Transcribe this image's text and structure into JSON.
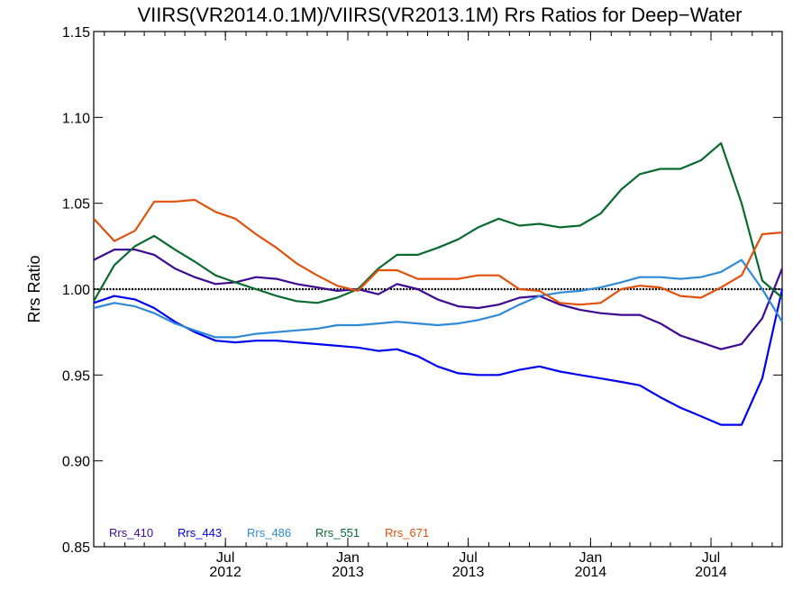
{
  "chart_data": {
    "type": "line",
    "title": "VIIRS(VR2014.0.1M)/VIIRS(VR2013.1M)  Rrs Ratios for Deep−Water",
    "xlabel": "",
    "ylabel": "Rrs Ratio",
    "ylim": [
      0.85,
      1.15
    ],
    "xlim": [
      "2011-12-16",
      "2014-10-16"
    ],
    "grid": false,
    "legend_position": "bottom-left",
    "y_ticks": [
      "0.85",
      "0.90",
      "0.95",
      "1.00",
      "1.05",
      "1.10",
      "1.15"
    ],
    "x_ticks": [
      {
        "date": "2012-07-01",
        "month": "Jul",
        "year": "2012"
      },
      {
        "date": "2013-01-01",
        "month": "Jan",
        "year": "2013"
      },
      {
        "date": "2013-07-01",
        "month": "Jul",
        "year": "2013"
      },
      {
        "date": "2014-01-01",
        "month": "Jan",
        "year": "2014"
      },
      {
        "date": "2014-07-01",
        "month": "Jul",
        "year": "2014"
      }
    ],
    "reference_line": 1.0,
    "x": [
      "2011-12-16",
      "2012-01-16",
      "2012-02-16",
      "2012-03-16",
      "2012-04-16",
      "2012-05-16",
      "2012-06-16",
      "2012-07-16",
      "2012-08-16",
      "2012-09-16",
      "2012-10-16",
      "2012-11-16",
      "2012-12-16",
      "2013-01-16",
      "2013-02-16",
      "2013-03-16",
      "2013-04-16",
      "2013-05-16",
      "2013-06-16",
      "2013-07-16",
      "2013-08-16",
      "2013-09-16",
      "2013-10-16",
      "2013-11-16",
      "2013-12-16",
      "2014-01-16",
      "2014-02-16",
      "2014-03-16",
      "2014-04-16",
      "2014-05-16",
      "2014-06-16",
      "2014-07-16",
      "2014-08-16",
      "2014-09-16",
      "2014-10-16"
    ],
    "series": [
      {
        "name": "Rrs_410",
        "color": "#3d0a91",
        "values": [
          1.017,
          1.023,
          1.023,
          1.02,
          1.012,
          1.007,
          1.003,
          1.004,
          1.007,
          1.006,
          1.003,
          1.001,
          0.999,
          1.0,
          0.997,
          1.003,
          1.0,
          0.994,
          0.99,
          0.989,
          0.991,
          0.995,
          0.996,
          0.991,
          0.988,
          0.986,
          0.985,
          0.985,
          0.98,
          0.973,
          0.969,
          0.965,
          0.968,
          0.983,
          1.012
        ]
      },
      {
        "name": "Rrs_443",
        "color": "#0000f0",
        "values": [
          0.992,
          0.996,
          0.994,
          0.989,
          0.981,
          0.975,
          0.97,
          0.969,
          0.97,
          0.97,
          0.969,
          0.968,
          0.967,
          0.966,
          0.964,
          0.965,
          0.961,
          0.955,
          0.951,
          0.95,
          0.95,
          0.953,
          0.955,
          0.952,
          0.95,
          0.948,
          0.946,
          0.944,
          0.937,
          0.931,
          0.926,
          0.921,
          0.921,
          0.948,
          1.0
        ]
      },
      {
        "name": "Rrs_486",
        "color": "#2e8ad6",
        "values": [
          0.989,
          0.992,
          0.99,
          0.986,
          0.98,
          0.976,
          0.972,
          0.972,
          0.974,
          0.975,
          0.976,
          0.977,
          0.979,
          0.979,
          0.98,
          0.981,
          0.98,
          0.979,
          0.98,
          0.982,
          0.985,
          0.991,
          0.996,
          0.998,
          0.999,
          1.001,
          1.004,
          1.007,
          1.007,
          1.006,
          1.007,
          1.01,
          1.017,
          1.0,
          0.981
        ]
      },
      {
        "name": "Rrs_551",
        "color": "#0a6b31",
        "values": [
          0.993,
          1.014,
          1.025,
          1.031,
          1.023,
          1.016,
          1.008,
          1.004,
          1.0,
          0.996,
          0.993,
          0.992,
          0.995,
          1.0,
          1.012,
          1.02,
          1.02,
          1.024,
          1.029,
          1.036,
          1.041,
          1.037,
          1.038,
          1.036,
          1.037,
          1.044,
          1.058,
          1.067,
          1.07,
          1.07,
          1.075,
          1.085,
          1.05,
          1.005,
          0.995
        ]
      },
      {
        "name": "Rrs_671",
        "color": "#e0510c",
        "values": [
          1.041,
          1.028,
          1.034,
          1.051,
          1.051,
          1.052,
          1.045,
          1.041,
          1.032,
          1.024,
          1.015,
          1.008,
          1.002,
          0.999,
          1.011,
          1.011,
          1.006,
          1.006,
          1.006,
          1.008,
          1.008,
          1.0,
          0.999,
          0.992,
          0.991,
          0.992,
          1.0,
          1.002,
          1.001,
          0.996,
          0.995,
          1.001,
          1.008,
          1.032,
          1.033
        ]
      }
    ]
  }
}
